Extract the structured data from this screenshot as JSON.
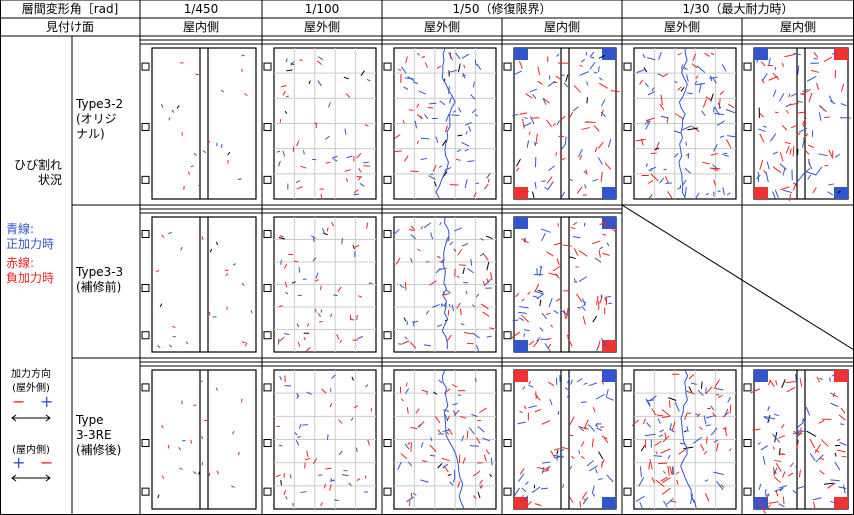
{
  "header": {
    "row1": [
      "層間変形角［rad]",
      "1/450",
      "1/100",
      "1/50（修復限界）",
      "1/30（最大耐力時）"
    ],
    "row2": [
      "見付け面",
      "屋内側",
      "屋外側",
      "屋外側",
      "屋内側",
      "屋外側",
      "屋内側"
    ]
  },
  "rows": [
    {
      "label": "Type3-2\n(オリジ\nナル)"
    },
    {
      "label": "Type3-3\n(補修前)"
    },
    {
      "label": "Type\n   3-3RE\n(補修後)"
    }
  ],
  "legend": {
    "crack": "ひび割れ\n状況",
    "blue": "青線:\n正加力時",
    "red": "赤線:\n負加力時",
    "direction": "加力方向",
    "outdoor": "(屋外側)",
    "outdoor_minus": "−",
    "outdoor_plus": "+",
    "indoor": "(屋内側)",
    "indoor_plus": "+",
    "indoor_minus": "−"
  }
}
